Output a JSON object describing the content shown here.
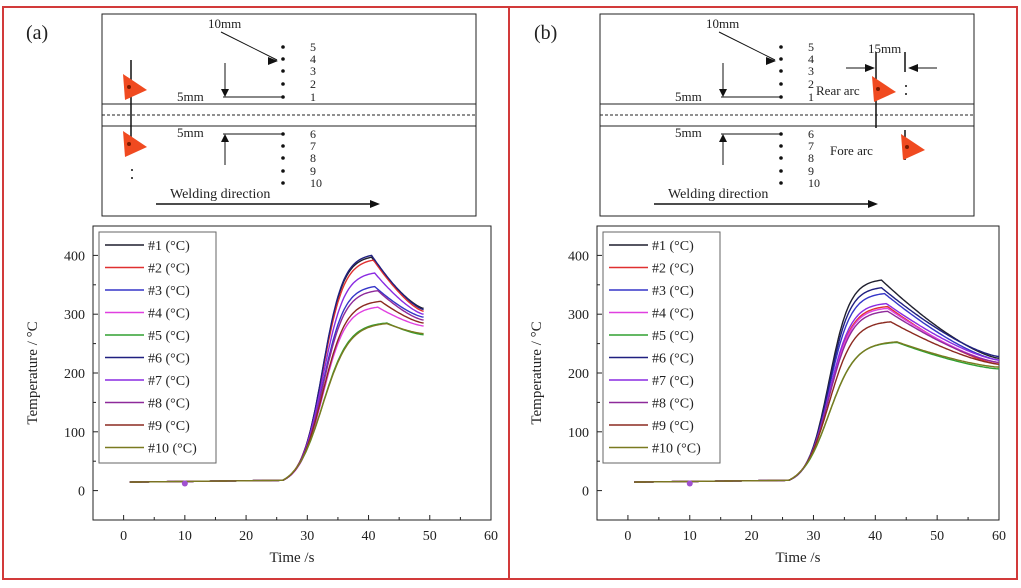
{
  "figure": {
    "panel_labels": [
      "(a)",
      "(b)"
    ]
  },
  "schematic": {
    "label_10mm": "10mm",
    "label_5mm_top": "5mm",
    "label_5mm_bottom": "5mm",
    "label_15mm": "15mm",
    "rear_arc": "Rear arc",
    "fore_arc": "Fore arc",
    "welding_direction": "Welding direction",
    "top_points": [
      "5",
      "4",
      "3",
      "2",
      "1"
    ],
    "bottom_points": [
      "6",
      "7",
      "8",
      "9",
      "10"
    ]
  },
  "colors": {
    "panel_border": "#d23a3a",
    "series": [
      "#1f1f2e",
      "#e03030",
      "#3535c8",
      "#e040e0",
      "#30a030",
      "#202080",
      "#8a2be2",
      "#8e2a9a",
      "#8b2a20",
      "#7a7a20"
    ],
    "arc": "#f04a20"
  },
  "chart_data": [
    {
      "type": "line",
      "panel": "(a)",
      "xlabel": "Time /s",
      "ylabel": "Temperature / °C",
      "xlim": [
        -5,
        60
      ],
      "ylim": [
        -50,
        450
      ],
      "xticks": [
        "0",
        "10",
        "20",
        "30",
        "40",
        "50",
        "60"
      ],
      "yticks": [
        "0",
        "100",
        "200",
        "300",
        "400"
      ],
      "legend_position": "top-left",
      "series": [
        {
          "name": "#1 (°C)",
          "peak": 397,
          "peak_time": 40.5,
          "end": 310,
          "end_time": 49,
          "sharp": 1.0
        },
        {
          "name": "#2 (°C)",
          "peak": 392,
          "peak_time": 40.8,
          "end": 305,
          "end_time": 49,
          "sharp": 0.97
        },
        {
          "name": "#3 (°C)",
          "peak": 347,
          "peak_time": 41.0,
          "end": 295,
          "end_time": 49,
          "sharp": 0.95
        },
        {
          "name": "#4 (°C)",
          "peak": 312,
          "peak_time": 41.5,
          "end": 280,
          "end_time": 49,
          "sharp": 0.9
        },
        {
          "name": "#5 (°C)",
          "peak": 285,
          "peak_time": 43.0,
          "end": 265,
          "end_time": 49,
          "sharp": 0.8
        },
        {
          "name": "#6 (°C)",
          "peak": 400,
          "peak_time": 40.5,
          "end": 308,
          "end_time": 49,
          "sharp": 1.0
        },
        {
          "name": "#7 (°C)",
          "peak": 370,
          "peak_time": 41.0,
          "end": 300,
          "end_time": 49,
          "sharp": 0.96
        },
        {
          "name": "#8 (°C)",
          "peak": 340,
          "peak_time": 41.5,
          "end": 290,
          "end_time": 49,
          "sharp": 0.93
        },
        {
          "name": "#9 (°C)",
          "peak": 322,
          "peak_time": 42.0,
          "end": 285,
          "end_time": 49,
          "sharp": 0.88
        },
        {
          "name": "#10 (°C)",
          "peak": 284,
          "peak_time": 43.0,
          "end": 267,
          "end_time": 49,
          "sharp": 0.78
        }
      ]
    },
    {
      "type": "line",
      "panel": "(b)",
      "xlabel": "Time /s",
      "ylabel": "Temperature / °C",
      "xlim": [
        -5,
        60
      ],
      "ylim": [
        -50,
        450
      ],
      "xticks": [
        "0",
        "10",
        "20",
        "30",
        "40",
        "50",
        "60"
      ],
      "yticks": [
        "0",
        "100",
        "200",
        "300",
        "400"
      ],
      "legend_position": "top-left",
      "series": [
        {
          "name": "#1 (°C)",
          "peak": 358,
          "peak_time": 41.0,
          "end": 225,
          "end_time": 60,
          "sharp": 1.0
        },
        {
          "name": "#2 (°C)",
          "peak": 313,
          "peak_time": 42.0,
          "end": 215,
          "end_time": 60,
          "sharp": 0.92
        },
        {
          "name": "#3 (°C)",
          "peak": 335,
          "peak_time": 41.5,
          "end": 222,
          "end_time": 60,
          "sharp": 0.96
        },
        {
          "name": "#4 (°C)",
          "peak": 310,
          "peak_time": 42.0,
          "end": 218,
          "end_time": 60,
          "sharp": 0.92
        },
        {
          "name": "#5 (°C)",
          "peak": 252,
          "peak_time": 43.5,
          "end": 207,
          "end_time": 60,
          "sharp": 0.8
        },
        {
          "name": "#6 (°C)",
          "peak": 345,
          "peak_time": 41.0,
          "end": 228,
          "end_time": 60,
          "sharp": 1.0
        },
        {
          "name": "#7 (°C)",
          "peak": 318,
          "peak_time": 41.8,
          "end": 222,
          "end_time": 60,
          "sharp": 0.94
        },
        {
          "name": "#8 (°C)",
          "peak": 305,
          "peak_time": 42.0,
          "end": 218,
          "end_time": 60,
          "sharp": 0.91
        },
        {
          "name": "#9 (°C)",
          "peak": 287,
          "peak_time": 42.5,
          "end": 215,
          "end_time": 60,
          "sharp": 0.86
        },
        {
          "name": "#10 (°C)",
          "peak": 253,
          "peak_time": 43.5,
          "end": 210,
          "end_time": 60,
          "sharp": 0.78
        }
      ]
    }
  ]
}
